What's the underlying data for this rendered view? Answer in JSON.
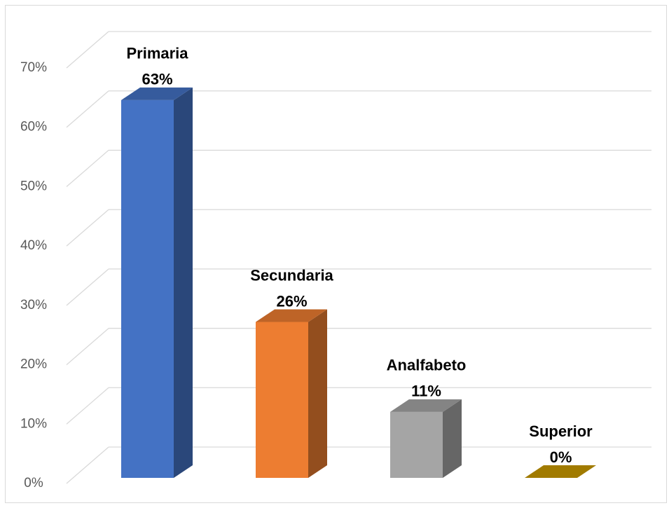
{
  "chart_data": {
    "type": "bar3d",
    "categories": [
      "Primaria",
      "Secundaria",
      "Analfabeto",
      "Superior"
    ],
    "values": [
      63,
      26,
      11,
      0
    ],
    "value_labels": [
      "63%",
      "26%",
      "11%",
      "0%"
    ],
    "colors": [
      "#4472c4",
      "#ed7d31",
      "#a5a5a5",
      "#c99a00"
    ],
    "ylim": [
      0,
      70
    ],
    "yticks": [
      {
        "value": 0,
        "label": "0%"
      },
      {
        "value": 10,
        "label": "10%"
      },
      {
        "value": 20,
        "label": "20%"
      },
      {
        "value": 30,
        "label": "30%"
      },
      {
        "value": 40,
        "label": "40%"
      },
      {
        "value": 50,
        "label": "50%"
      },
      {
        "value": 60,
        "label": "60%"
      },
      {
        "value": 70,
        "label": "70%"
      }
    ],
    "grid": true
  }
}
